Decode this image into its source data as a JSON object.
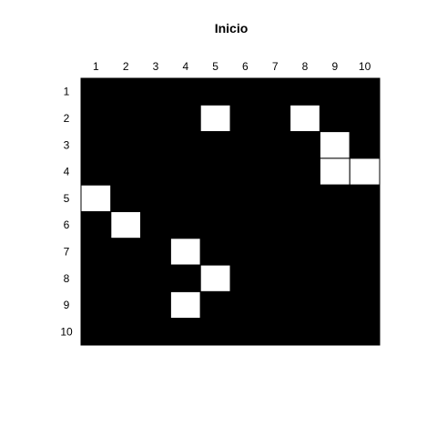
{
  "chart_data": {
    "type": "heatmap",
    "title": "Inicio",
    "xlabel": "",
    "ylabel": "",
    "x_tick_labels": [
      "1",
      "2",
      "3",
      "4",
      "5",
      "6",
      "7",
      "8",
      "9",
      "10"
    ],
    "y_tick_labels": [
      "1",
      "2",
      "3",
      "4",
      "5",
      "6",
      "7",
      "8",
      "9",
      "10"
    ],
    "grid": false,
    "legend": "none",
    "colors": {
      "0": "#000000",
      "1": "#ffffff",
      "cell_border": "#000000"
    },
    "cells": [
      [
        0,
        0,
        0,
        0,
        0,
        0,
        0,
        0,
        0,
        0
      ],
      [
        0,
        0,
        0,
        0,
        1,
        0,
        0,
        1,
        0,
        0
      ],
      [
        0,
        0,
        0,
        0,
        0,
        0,
        0,
        0,
        1,
        0
      ],
      [
        0,
        0,
        0,
        0,
        0,
        0,
        0,
        0,
        1,
        1
      ],
      [
        1,
        0,
        0,
        0,
        0,
        0,
        0,
        0,
        0,
        0
      ],
      [
        0,
        1,
        0,
        0,
        0,
        0,
        0,
        0,
        0,
        0
      ],
      [
        0,
        0,
        0,
        1,
        0,
        0,
        0,
        0,
        0,
        0
      ],
      [
        0,
        0,
        0,
        0,
        1,
        0,
        0,
        0,
        0,
        0
      ],
      [
        0,
        0,
        0,
        1,
        0,
        0,
        0,
        0,
        0,
        0
      ],
      [
        0,
        0,
        0,
        0,
        0,
        0,
        0,
        0,
        0,
        0
      ]
    ]
  }
}
